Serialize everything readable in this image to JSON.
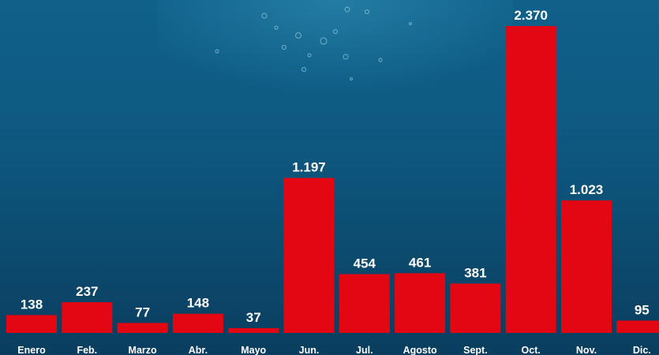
{
  "chart_data": {
    "type": "bar",
    "categories": [
      "Enero",
      "Feb.",
      "Marzo",
      "Abr.",
      "Mayo",
      "Jun.",
      "Jul.",
      "Agosto",
      "Sept.",
      "Oct.",
      "Nov.",
      "Dic."
    ],
    "values": [
      138,
      237,
      77,
      148,
      37,
      1197,
      454,
      461,
      381,
      2370,
      1023,
      95
    ],
    "value_labels": [
      "138",
      "237",
      "77",
      "148",
      "37",
      "1.197",
      "454",
      "461",
      "381",
      "2.370",
      "1.023",
      "95"
    ],
    "color": "#e30613"
  }
}
